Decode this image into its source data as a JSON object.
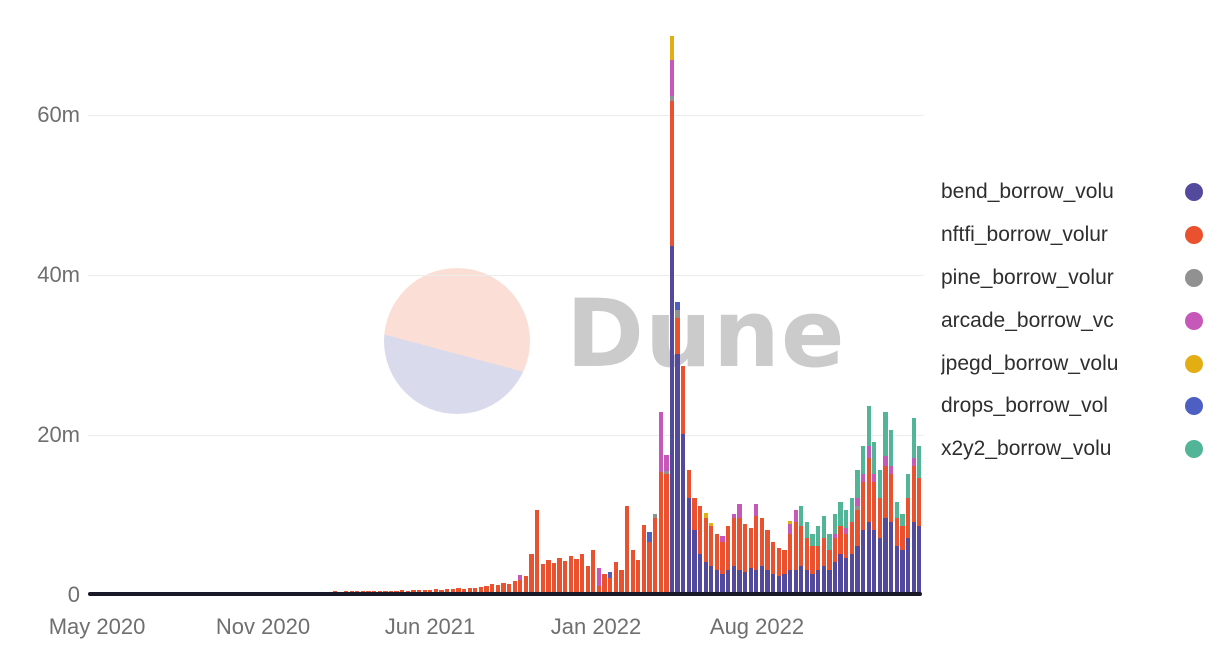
{
  "watermark": {
    "text": "Dune"
  },
  "axes": {
    "y_ticks": [
      {
        "label": "60m",
        "value": 60
      },
      {
        "label": "40m",
        "value": 40
      },
      {
        "label": "20m",
        "value": 20
      },
      {
        "label": "0",
        "value": 0
      }
    ],
    "x_ticks": [
      {
        "label": "May 2020",
        "x": 97
      },
      {
        "label": "Nov 2020",
        "x": 263
      },
      {
        "label": "Jun 2021",
        "x": 430
      },
      {
        "label": "Jan 2022",
        "x": 596
      },
      {
        "label": "Aug 2022",
        "x": 757
      }
    ]
  },
  "legend": {
    "items": [
      {
        "label": "bend_borrow_volu",
        "color": "#544a9d"
      },
      {
        "label": "nftfi_borrow_volur",
        "color": "#ea512e"
      },
      {
        "label": "pine_borrow_volur",
        "color": "#919191"
      },
      {
        "label": "arcade_borrow_vc",
        "color": "#c558b9"
      },
      {
        "label": "jpegd_borrow_volu",
        "color": "#e2ae13"
      },
      {
        "label": "drops_borrow_vol",
        "color": "#4d5fc2"
      },
      {
        "label": "x2y2_borrow_volu",
        "color": "#52b597"
      }
    ]
  },
  "chart_data": {
    "type": "bar",
    "stacked": true,
    "bar_count": 148,
    "x_axis": "weekly bars, May 2020 - Dec 2022",
    "x_tick_labels": [
      "May 2020",
      "Nov 2020",
      "Jun 2021",
      "Jan 2022",
      "Aug 2022"
    ],
    "x_tick_bar_index": [
      1,
      31,
      60,
      90,
      119
    ],
    "ylim": [
      0,
      70
    ],
    "y_unit": "m (millions)",
    "grid": "horizontal",
    "legend_position": "right",
    "series": [
      {
        "name": "bend_borrow_volu",
        "color": "#544a9d",
        "values": [
          0,
          0,
          0,
          0,
          0,
          0,
          0,
          0,
          0,
          0,
          0,
          0,
          0,
          0,
          0,
          0,
          0,
          0,
          0,
          0,
          0,
          0,
          0,
          0,
          0,
          0,
          0,
          0,
          0,
          0,
          0,
          0,
          0,
          0,
          0,
          0,
          0,
          0,
          0,
          0,
          0,
          0,
          0,
          0,
          0,
          0,
          0,
          0,
          0,
          0,
          0,
          0,
          0,
          0,
          0,
          0,
          0,
          0,
          0,
          0,
          0,
          0,
          0,
          0,
          0,
          0,
          0,
          0,
          0,
          0,
          0,
          0,
          0,
          0,
          0,
          0,
          0,
          0,
          0,
          0,
          0,
          0,
          0,
          0,
          0,
          0,
          0,
          0,
          0,
          0,
          0,
          0,
          0,
          0,
          0,
          0,
          0,
          0,
          0,
          0,
          0,
          0,
          0,
          43.5,
          30,
          20,
          12,
          8,
          5,
          4,
          3.5,
          3,
          2.5,
          3,
          3.5,
          3,
          2.8,
          3.2,
          3,
          3.5,
          3,
          2.5,
          2.2,
          2.5,
          3,
          3,
          3.5,
          3,
          2.5,
          3,
          3.5,
          3,
          4,
          5,
          4.5,
          5,
          6,
          8,
          9,
          8,
          7,
          9.5,
          9,
          6,
          5.5,
          7,
          9,
          8.5
        ]
      },
      {
        "name": "nftfi_borrow_volur",
        "color": "#ea512e",
        "values": [
          0.03,
          0.04,
          0.03,
          0.05,
          0.04,
          0.05,
          0.06,
          0.05,
          0.06,
          0.07,
          0.06,
          0.08,
          0.07,
          0.09,
          0.08,
          0.1,
          0.09,
          0.11,
          0.1,
          0.12,
          0.12,
          0.14,
          0.13,
          0.15,
          0.14,
          0.16,
          0.15,
          0.18,
          0.16,
          0.2,
          0.18,
          0.22,
          0.2,
          0.24,
          0.22,
          0.26,
          0.24,
          0.28,
          0.26,
          0.3,
          0.28,
          0.3,
          0.28,
          0.32,
          0.3,
          0.34,
          0.32,
          0.36,
          0.34,
          0.38,
          0.36,
          0.4,
          0.38,
          0.42,
          0.4,
          0.45,
          0.42,
          0.48,
          0.45,
          0.5,
          0.55,
          0.6,
          0.55,
          0.65,
          0.6,
          0.7,
          0.65,
          0.8,
          0.75,
          0.9,
          1,
          1.2,
          1.1,
          1.4,
          1.3,
          1.6,
          1.8,
          2.2,
          5,
          10.5,
          3.8,
          4.2,
          3.9,
          4.5,
          4.1,
          4.8,
          4.4,
          5,
          3.5,
          5.5,
          1,
          2.5,
          2,
          4,
          3,
          11,
          5.5,
          4.2,
          8.6,
          6.5,
          9.5,
          15.2,
          15,
          18.1,
          4.5,
          8.5,
          3.5,
          4,
          6,
          5.5,
          5,
          4.5,
          4,
          5.5,
          6,
          6.5,
          6,
          5,
          6.8,
          6,
          5,
          4,
          3.5,
          3,
          4.5,
          6,
          5,
          4,
          3.5,
          3,
          3.5,
          2.5,
          3,
          3.5,
          3,
          4,
          4.5,
          6,
          8,
          6,
          5,
          6.5,
          6,
          3.5,
          3,
          5,
          7,
          6
        ]
      },
      {
        "name": "pine_borrow_volur",
        "color": "#919191",
        "sparse": {
          "100": 0.5,
          "102": 0.4,
          "103": 0.6,
          "104": 1,
          "136": 0.5
        }
      },
      {
        "name": "arcade_borrow_vc",
        "color": "#c558b9",
        "sparse": {
          "76": 0.6,
          "90": 2.2,
          "101": 7.5,
          "102": 2,
          "103": 4.5,
          "112": 0.8,
          "114": 0.5,
          "115": 1.8,
          "118": 1.5,
          "124": 1.2,
          "125": 1.5,
          "132": 0.5,
          "134": 0.8,
          "136": 1,
          "137": 1,
          "138": 1.5,
          "139": 1,
          "141": 1.2,
          "142": 1,
          "146": 1
        }
      },
      {
        "name": "jpegd_borrow_volu",
        "color": "#e2ae13",
        "sparse": {
          "103": 3,
          "109": 0.6,
          "110": 0.4,
          "124": 0.4
        }
      },
      {
        "name": "drops_borrow_vol",
        "color": "#4d5fc2",
        "sparse": {
          "92": 0.8,
          "99": 1.2,
          "104": 1
        }
      },
      {
        "name": "x2y2_borrow_volu",
        "color": "#52b597",
        "sparse": {
          "126": 2.5,
          "127": 2,
          "128": 1.5,
          "129": 2.5,
          "130": 2.8,
          "131": 2,
          "132": 2.5,
          "133": 3,
          "134": 2.2,
          "135": 3,
          "136": 3.5,
          "137": 3.5,
          "138": 5,
          "139": 4,
          "140": 3.5,
          "141": 5.5,
          "142": 4.5,
          "143": 2,
          "144": 1.5,
          "145": 3,
          "146": 5,
          "147": 4
        }
      }
    ]
  }
}
